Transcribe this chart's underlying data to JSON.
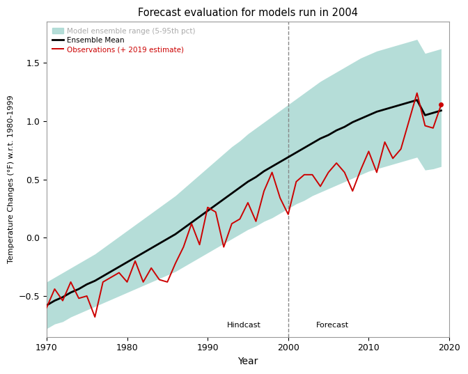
{
  "title": "Forecast evaluation for models run in 2004",
  "xlabel": "Year",
  "ylabel": "Temperature Changes (°F) w.r.t. 1980-1999",
  "xlim": [
    1970,
    2020
  ],
  "ylim": [
    -0.85,
    1.85
  ],
  "yticks": [
    -0.5,
    0.0,
    0.5,
    1.0,
    1.5
  ],
  "xticks": [
    1970,
    1980,
    1990,
    2000,
    2010,
    2020
  ],
  "hindcast_label": "Hindcast",
  "forecast_label": "Forecast",
  "vline_x": 2000,
  "bg_color": "#ffffff",
  "shade_color": "#a8d8d2",
  "ensemble_color": "#000000",
  "obs_color": "#cc0000",
  "legend_shade_label": "Model ensemble range (5-95th pct)",
  "legend_ensemble_label": "Ensemble Mean",
  "legend_obs_label": "Observations (+ 2019 estimate)",
  "years_ensemble": [
    1970,
    1971,
    1972,
    1973,
    1974,
    1975,
    1976,
    1977,
    1978,
    1979,
    1980,
    1981,
    1982,
    1983,
    1984,
    1985,
    1986,
    1987,
    1988,
    1989,
    1990,
    1991,
    1992,
    1993,
    1994,
    1995,
    1996,
    1997,
    1998,
    1999,
    2000,
    2001,
    2002,
    2003,
    2004,
    2005,
    2006,
    2007,
    2008,
    2009,
    2010,
    2011,
    2012,
    2013,
    2014,
    2015,
    2016,
    2017,
    2018,
    2019
  ],
  "ensemble_mean": [
    -0.58,
    -0.54,
    -0.51,
    -0.47,
    -0.44,
    -0.4,
    -0.37,
    -0.33,
    -0.29,
    -0.25,
    -0.21,
    -0.17,
    -0.13,
    -0.09,
    -0.05,
    -0.01,
    0.03,
    0.08,
    0.13,
    0.18,
    0.23,
    0.28,
    0.33,
    0.38,
    0.43,
    0.48,
    0.52,
    0.57,
    0.61,
    0.65,
    0.69,
    0.73,
    0.77,
    0.81,
    0.85,
    0.88,
    0.92,
    0.95,
    0.99,
    1.02,
    1.05,
    1.08,
    1.1,
    1.12,
    1.14,
    1.16,
    1.18,
    1.05,
    1.07,
    1.09
  ],
  "ensemble_upper": [
    -0.38,
    -0.34,
    -0.3,
    -0.26,
    -0.22,
    -0.18,
    -0.14,
    -0.09,
    -0.04,
    0.01,
    0.06,
    0.11,
    0.16,
    0.21,
    0.26,
    0.31,
    0.36,
    0.42,
    0.48,
    0.54,
    0.6,
    0.66,
    0.72,
    0.78,
    0.83,
    0.89,
    0.94,
    0.99,
    1.04,
    1.09,
    1.14,
    1.19,
    1.24,
    1.29,
    1.34,
    1.38,
    1.42,
    1.46,
    1.5,
    1.54,
    1.57,
    1.6,
    1.62,
    1.64,
    1.66,
    1.68,
    1.7,
    1.58,
    1.6,
    1.62
  ],
  "ensemble_lower": [
    -0.78,
    -0.74,
    -0.72,
    -0.68,
    -0.65,
    -0.62,
    -0.59,
    -0.56,
    -0.53,
    -0.5,
    -0.47,
    -0.44,
    -0.41,
    -0.38,
    -0.35,
    -0.32,
    -0.29,
    -0.25,
    -0.21,
    -0.17,
    -0.13,
    -0.09,
    -0.05,
    -0.01,
    0.03,
    0.07,
    0.1,
    0.14,
    0.17,
    0.21,
    0.25,
    0.29,
    0.32,
    0.36,
    0.39,
    0.42,
    0.45,
    0.48,
    0.51,
    0.54,
    0.57,
    0.59,
    0.61,
    0.63,
    0.65,
    0.67,
    0.69,
    0.58,
    0.59,
    0.61
  ],
  "years_obs": [
    1970,
    1971,
    1972,
    1973,
    1974,
    1975,
    1976,
    1977,
    1978,
    1979,
    1980,
    1981,
    1982,
    1983,
    1984,
    1985,
    1986,
    1987,
    1988,
    1989,
    1990,
    1991,
    1992,
    1993,
    1994,
    1995,
    1996,
    1997,
    1998,
    1999,
    2000,
    2001,
    2002,
    2003,
    2004,
    2005,
    2006,
    2007,
    2008,
    2009,
    2010,
    2011,
    2012,
    2013,
    2014,
    2015,
    2016,
    2017,
    2018,
    2019
  ],
  "observations": [
    -0.6,
    -0.44,
    -0.54,
    -0.38,
    -0.52,
    -0.5,
    -0.68,
    -0.38,
    -0.34,
    -0.3,
    -0.38,
    -0.2,
    -0.38,
    -0.26,
    -0.36,
    -0.38,
    -0.22,
    -0.08,
    0.12,
    -0.06,
    0.26,
    0.22,
    -0.08,
    0.12,
    0.16,
    0.3,
    0.14,
    0.4,
    0.56,
    0.34,
    0.2,
    0.48,
    0.54,
    0.54,
    0.44,
    0.56,
    0.64,
    0.56,
    0.4,
    0.58,
    0.74,
    0.56,
    0.82,
    0.68,
    0.76,
    1.0,
    1.24,
    0.96,
    0.94,
    1.14
  ]
}
